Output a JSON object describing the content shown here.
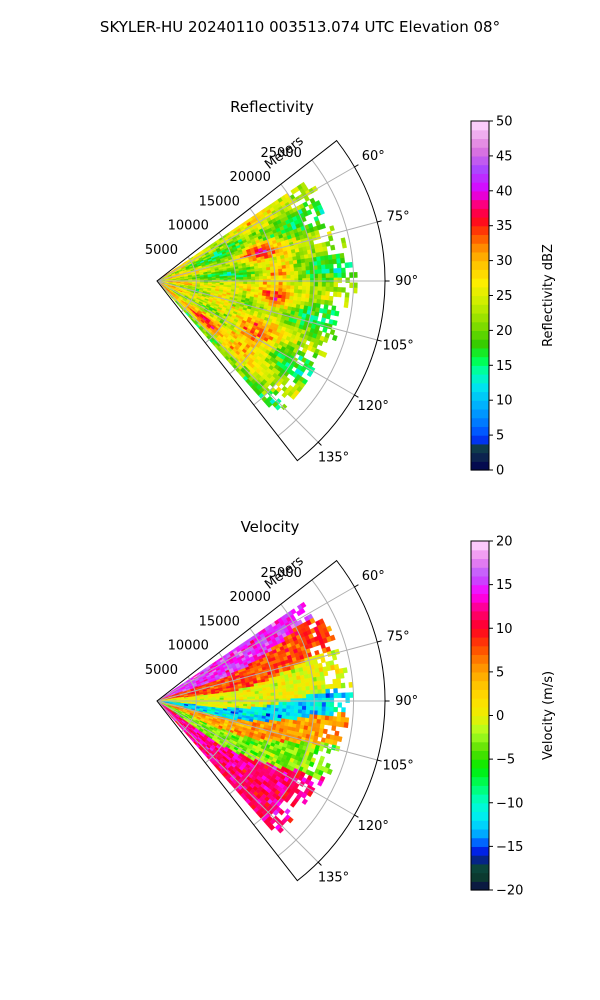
{
  "figure": {
    "title": "SKYLER-HU  20240110  003513.074 UTC Elevation 08°"
  },
  "chart_data": [
    {
      "type": "heatmap",
      "title": "Reflectivity",
      "projection": "polar-sector",
      "theta_ticks_deg": [
        "60°",
        "75°",
        "90°",
        "105°",
        "120°",
        "135°"
      ],
      "theta_range_deg": [
        52,
        142
      ],
      "r_label": "Meters",
      "r_ticks": [
        "5000",
        "10000",
        "15000",
        "20000",
        "25000"
      ],
      "r_max": 29000,
      "data_extent_m": 25500,
      "colorbar": {
        "label": "Reflectivity dBZ",
        "range": [
          0,
          50
        ],
        "ticks": [
          "0",
          "5",
          "10",
          "15",
          "20",
          "25",
          "30",
          "35",
          "40",
          "45",
          "50"
        ]
      },
      "dominant_range_dbz": [
        20,
        38
      ],
      "cores_dbz_approx": 36
    },
    {
      "type": "heatmap",
      "title": "Velocity",
      "projection": "polar-sector",
      "theta_ticks_deg": [
        "60°",
        "75°",
        "90°",
        "105°",
        "120°",
        "135°"
      ],
      "theta_range_deg": [
        52,
        142
      ],
      "r_label": "Meters",
      "r_ticks": [
        "5000",
        "10000",
        "15000",
        "20000",
        "25000"
      ],
      "r_max": 29000,
      "data_extent_m": 25500,
      "colorbar": {
        "label": "Velocity (m/s)",
        "range": [
          -20,
          20
        ],
        "ticks": [
          "−20",
          "−15",
          "−10",
          "−5",
          "0",
          "5",
          "10",
          "15",
          "20"
        ]
      },
      "bands": [
        {
          "theta_deg": [
            57,
            68
          ],
          "velocity_ms": 15
        },
        {
          "theta_deg": [
            68,
            80
          ],
          "velocity_ms": 8
        },
        {
          "theta_deg": [
            80,
            93
          ],
          "velocity_ms": 0
        },
        {
          "theta_deg": [
            93,
            101
          ],
          "velocity_ms": -12
        },
        {
          "theta_deg": [
            101,
            111
          ],
          "velocity_ms": 5
        },
        {
          "theta_deg": [
            111,
            122
          ],
          "velocity_ms": -3
        },
        {
          "theta_deg": [
            122,
            131
          ],
          "velocity_ms": 12
        }
      ]
    }
  ]
}
